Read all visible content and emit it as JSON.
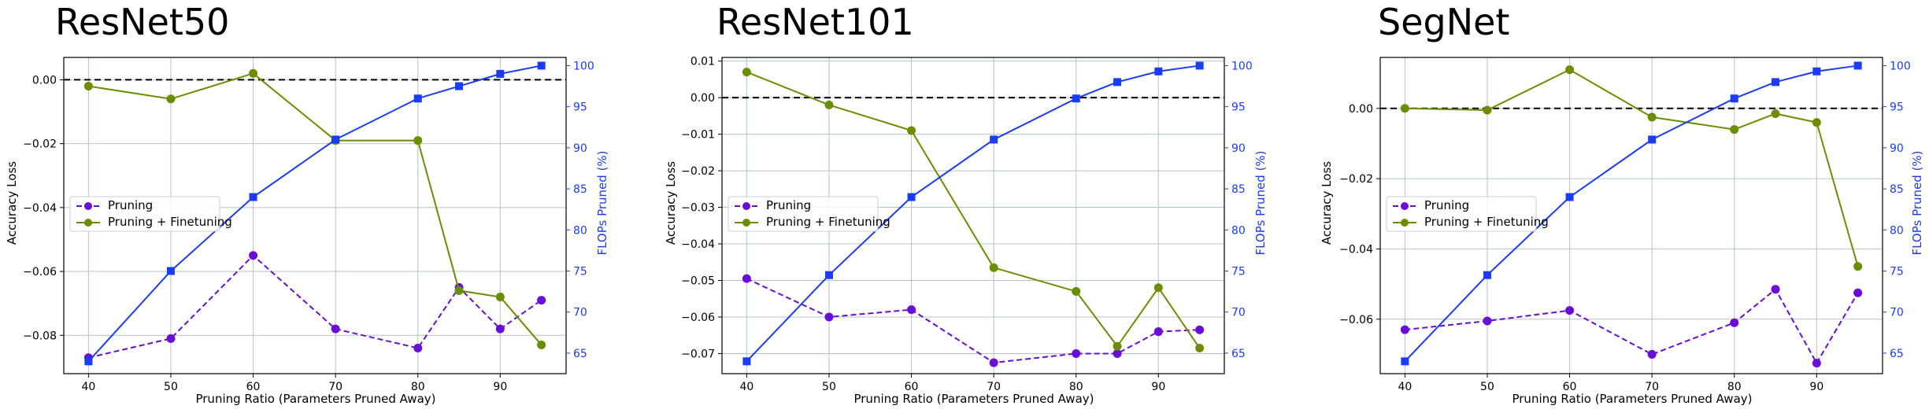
{
  "colors": {
    "pruning": "#6a0dd6",
    "finetune": "#6b8e00",
    "flops": "#1a3cf5",
    "grid": "#b0c4c8",
    "zero_line": "#000000"
  },
  "legend": {
    "pruning": "Pruning",
    "finetune": "Pruning + Finetuning"
  },
  "chart_data": [
    {
      "type": "line",
      "title": "ResNet50",
      "xlabel": "Pruning Ratio (Parameters Pruned Away)",
      "ylabel": "Accuracy Loss",
      "y2label": "FLOPs Pruned (%)",
      "x": [
        40,
        50,
        60,
        70,
        80,
        85,
        90,
        95
      ],
      "xticks": [
        40,
        50,
        60,
        70,
        80,
        90
      ],
      "ylim": [
        -0.092,
        0.007
      ],
      "yticks": [
        0.0,
        -0.02,
        -0.04,
        -0.06,
        -0.08
      ],
      "ytick_labels": [
        "0.00",
        "−0.02",
        "−0.04",
        "−0.06",
        "−0.08"
      ],
      "y2lim": [
        62.5,
        101
      ],
      "y2ticks": [
        65,
        70,
        75,
        80,
        85,
        90,
        95,
        100
      ],
      "legend_position": "center-left",
      "series": [
        {
          "name": "Pruning",
          "axis": "left",
          "style": "dashed",
          "marker": "circle",
          "values": [
            -0.087,
            -0.081,
            -0.055,
            -0.078,
            -0.084,
            -0.065,
            -0.078,
            -0.069
          ]
        },
        {
          "name": "Pruning + Finetuning",
          "axis": "left",
          "style": "solid",
          "marker": "circle",
          "values": [
            -0.002,
            -0.006,
            0.002,
            -0.019,
            -0.019,
            -0.066,
            -0.068,
            -0.083
          ]
        },
        {
          "name": "",
          "axis": "right",
          "style": "solid",
          "marker": "square",
          "values": [
            64,
            75,
            84,
            91,
            96,
            97.5,
            99,
            100
          ]
        }
      ]
    },
    {
      "type": "line",
      "title": "ResNet101",
      "xlabel": "Pruning Ratio (Parameters Pruned Away)",
      "ylabel": "Accuracy Loss",
      "y2label": "FLOPs Pruned (%)",
      "x": [
        40,
        50,
        60,
        70,
        80,
        85,
        90,
        95
      ],
      "xticks": [
        40,
        50,
        60,
        70,
        80,
        90
      ],
      "ylim": [
        -0.0755,
        0.011
      ],
      "yticks": [
        0.01,
        0.0,
        -0.01,
        -0.02,
        -0.03,
        -0.04,
        -0.05,
        -0.06,
        -0.07
      ],
      "ytick_labels": [
        "0.01",
        "0.00",
        "−0.01",
        "−0.02",
        "−0.03",
        "−0.04",
        "−0.05",
        "−0.06",
        "−0.07"
      ],
      "y2lim": [
        62.5,
        101
      ],
      "y2ticks": [
        65,
        70,
        75,
        80,
        85,
        90,
        95,
        100
      ],
      "legend_position": "center-left",
      "series": [
        {
          "name": "Pruning",
          "axis": "left",
          "style": "dashed",
          "marker": "circle",
          "values": [
            -0.0495,
            -0.06,
            -0.058,
            -0.0725,
            -0.07,
            -0.07,
            -0.064,
            -0.0635
          ]
        },
        {
          "name": "Pruning + Finetuning",
          "axis": "left",
          "style": "solid",
          "marker": "circle",
          "values": [
            0.007,
            -0.002,
            -0.009,
            -0.0465,
            -0.053,
            -0.068,
            -0.052,
            -0.0685
          ]
        },
        {
          "name": "",
          "axis": "right",
          "style": "solid",
          "marker": "square",
          "values": [
            64,
            74.5,
            84,
            91,
            96,
            98,
            99.3,
            100
          ]
        }
      ]
    },
    {
      "type": "line",
      "title": "SegNet",
      "xlabel": "Pruning Ratio (Parameters Pruned Away)",
      "ylabel": "Accuracy Loss",
      "y2label": "FLOPs Pruned (%)",
      "x": [
        40,
        50,
        60,
        70,
        80,
        85,
        90,
        95
      ],
      "xticks": [
        40,
        50,
        60,
        70,
        80,
        90
      ],
      "ylim": [
        -0.0755,
        0.0145
      ],
      "yticks": [
        0.0,
        -0.02,
        -0.04,
        -0.06
      ],
      "ytick_labels": [
        "0.00",
        "−0.02",
        "−0.04",
        "−0.06"
      ],
      "y2lim": [
        62.5,
        101
      ],
      "y2ticks": [
        65,
        70,
        75,
        80,
        85,
        90,
        95,
        100
      ],
      "legend_position": "center-left",
      "series": [
        {
          "name": "Pruning",
          "axis": "left",
          "style": "dashed",
          "marker": "circle",
          "values": [
            -0.063,
            -0.0605,
            -0.0575,
            -0.07,
            -0.061,
            -0.0515,
            -0.0725,
            -0.0525
          ]
        },
        {
          "name": "Pruning + Finetuning",
          "axis": "left",
          "style": "solid",
          "marker": "circle",
          "values": [
            0.0,
            -0.0005,
            0.011,
            -0.0025,
            -0.006,
            -0.0015,
            -0.004,
            -0.045
          ]
        },
        {
          "name": "",
          "axis": "right",
          "style": "solid",
          "marker": "square",
          "values": [
            64,
            74.5,
            84,
            91,
            96,
            98,
            99.3,
            100
          ]
        }
      ]
    }
  ]
}
